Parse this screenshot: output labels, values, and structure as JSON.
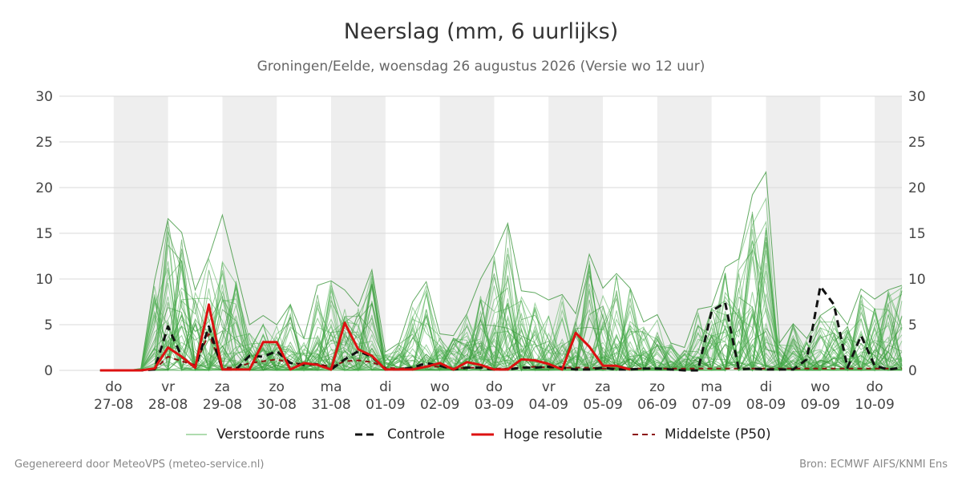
{
  "chart_data": {
    "type": "line",
    "title": "Neerslag (mm, 6 uurlijks)",
    "subtitle": "Groningen/Eelde, woensdag 26 augustus 2026 (Versie wo 12 uur)",
    "ylim": [
      0,
      30
    ],
    "yticks": [
      0,
      5,
      10,
      15,
      20,
      25,
      30
    ],
    "x_start": "2026-08-26T18:00",
    "x_step_hours": 6,
    "x_end": "2026-09-10T12:00",
    "xticks": [
      {
        "day": "do",
        "date": "27-08"
      },
      {
        "day": "vr",
        "date": "28-08"
      },
      {
        "day": "za",
        "date": "29-08"
      },
      {
        "day": "zo",
        "date": "30-08"
      },
      {
        "day": "ma",
        "date": "31-08"
      },
      {
        "day": "di",
        "date": "01-09"
      },
      {
        "day": "wo",
        "date": "02-09"
      },
      {
        "day": "do",
        "date": "03-09"
      },
      {
        "day": "vr",
        "date": "04-09"
      },
      {
        "day": "za",
        "date": "05-09"
      },
      {
        "day": "zo",
        "date": "06-09"
      },
      {
        "day": "ma",
        "date": "07-09"
      },
      {
        "day": "di",
        "date": "08-09"
      },
      {
        "day": "wo",
        "date": "09-09"
      },
      {
        "day": "do",
        "date": "10-09"
      }
    ],
    "grid": true,
    "legend_position": "bottom",
    "series": [
      {
        "name": "Controle",
        "color": "#111111",
        "style": "dashed",
        "values": [
          0,
          0,
          0,
          0,
          0.1,
          4.8,
          1.5,
          0.3,
          4.8,
          0.1,
          0.1,
          1.6,
          1.5,
          2.1,
          0.8,
          0.6,
          0.7,
          0.1,
          1.2,
          2.1,
          1.5,
          0.1,
          0.1,
          0.3,
          0.8,
          0.5,
          0.1,
          0.3,
          0.3,
          0.1,
          0.1,
          0.3,
          0.3,
          0.4,
          0.3,
          0.1,
          0.1,
          0.3,
          0.1,
          0.1,
          0.2,
          0.2,
          0.1,
          0,
          0,
          6.5,
          7.4,
          0.1,
          0.2,
          0.1,
          0.1,
          0.1,
          1.2,
          9.2,
          7.2,
          0.3,
          3.8,
          0.5,
          0.1,
          0.3
        ]
      },
      {
        "name": "Hoge resolutie",
        "color": "#dd1111",
        "style": "solid",
        "values": [
          0,
          0,
          0,
          0,
          0.2,
          2.5,
          1.5,
          0.3,
          7.2,
          0.1,
          0.1,
          0.1,
          3.1,
          3.1,
          0.1,
          0.8,
          0.6,
          0.1,
          5.2,
          2.3,
          1.6,
          0.1,
          0.1,
          0.1,
          0.4,
          0.8,
          0.1,
          0.9,
          0.6,
          0.1,
          0.1,
          1.2,
          1.1,
          0.7,
          0.1,
          4.1,
          2.6,
          0.5,
          0.5,
          0.1
        ]
      },
      {
        "name": "Middelste (P50)",
        "color": "#8b1010",
        "style": "dashed",
        "values": [
          0,
          0,
          0,
          0,
          0.1,
          1.5,
          1.0,
          0.6,
          4.0,
          0.3,
          0.3,
          0.8,
          1.0,
          1.2,
          0.8,
          0.7,
          0.7,
          0.4,
          1.0,
          1.1,
          0.9,
          0.3,
          0.2,
          0.3,
          0.4,
          0.4,
          0.2,
          0.3,
          0.3,
          0.2,
          0.2,
          0.3,
          0.4,
          0.3,
          0.3,
          0.3,
          0.3,
          0.2,
          0.2,
          0.2,
          0.2,
          0.2,
          0.2,
          0.2,
          0.2,
          0.2,
          0.2,
          0.2,
          0.2,
          0.2,
          0.2,
          0.2,
          0.2,
          0.2,
          0.2,
          0.2,
          0.2,
          0.2,
          0.2,
          0.2
        ]
      }
    ],
    "ensemble": {
      "name": "Verstoorde runs",
      "color": "#3a9a3a",
      "members": 50,
      "envelope_max": [
        0,
        0,
        0,
        0.2,
        9.8,
        16.6,
        15.1,
        8.8,
        12.4,
        17.0,
        11.0,
        5.0,
        6.0,
        5.0,
        7.2,
        3.5,
        9.3,
        9.8,
        8.8,
        7.0,
        11.0,
        2.0,
        3.0,
        7.5,
        9.7,
        4.0,
        3.8,
        6.2,
        10.0,
        12.7,
        16.1,
        8.7,
        8.5,
        7.7,
        8.3,
        6.2,
        12.7,
        9.0,
        10.6,
        9.0,
        5.3,
        6.1,
        3.0,
        2.5,
        6.7,
        7.0,
        11.3,
        12.2,
        19.2,
        21.7,
        3.0,
        5.1,
        3.5,
        6.0,
        7.0,
        5.0,
        8.9,
        7.8,
        8.8,
        9.3
      ]
    }
  },
  "legend": [
    {
      "label": "Verstoorde runs",
      "color": "#5fb85f",
      "style": "thin"
    },
    {
      "label": "Controle",
      "color": "#111111",
      "style": "dashed"
    },
    {
      "label": "Hoge resolutie",
      "color": "#dd1111",
      "style": "solid"
    },
    {
      "label": "Middelste (P50)",
      "color": "#8b1010",
      "style": "dashed"
    }
  ],
  "footer": {
    "left": "Gegenereerd door MeteoVPS (meteo-service.nl)",
    "right": "Bron: ECMWF AIFS/KNMI Ens"
  }
}
